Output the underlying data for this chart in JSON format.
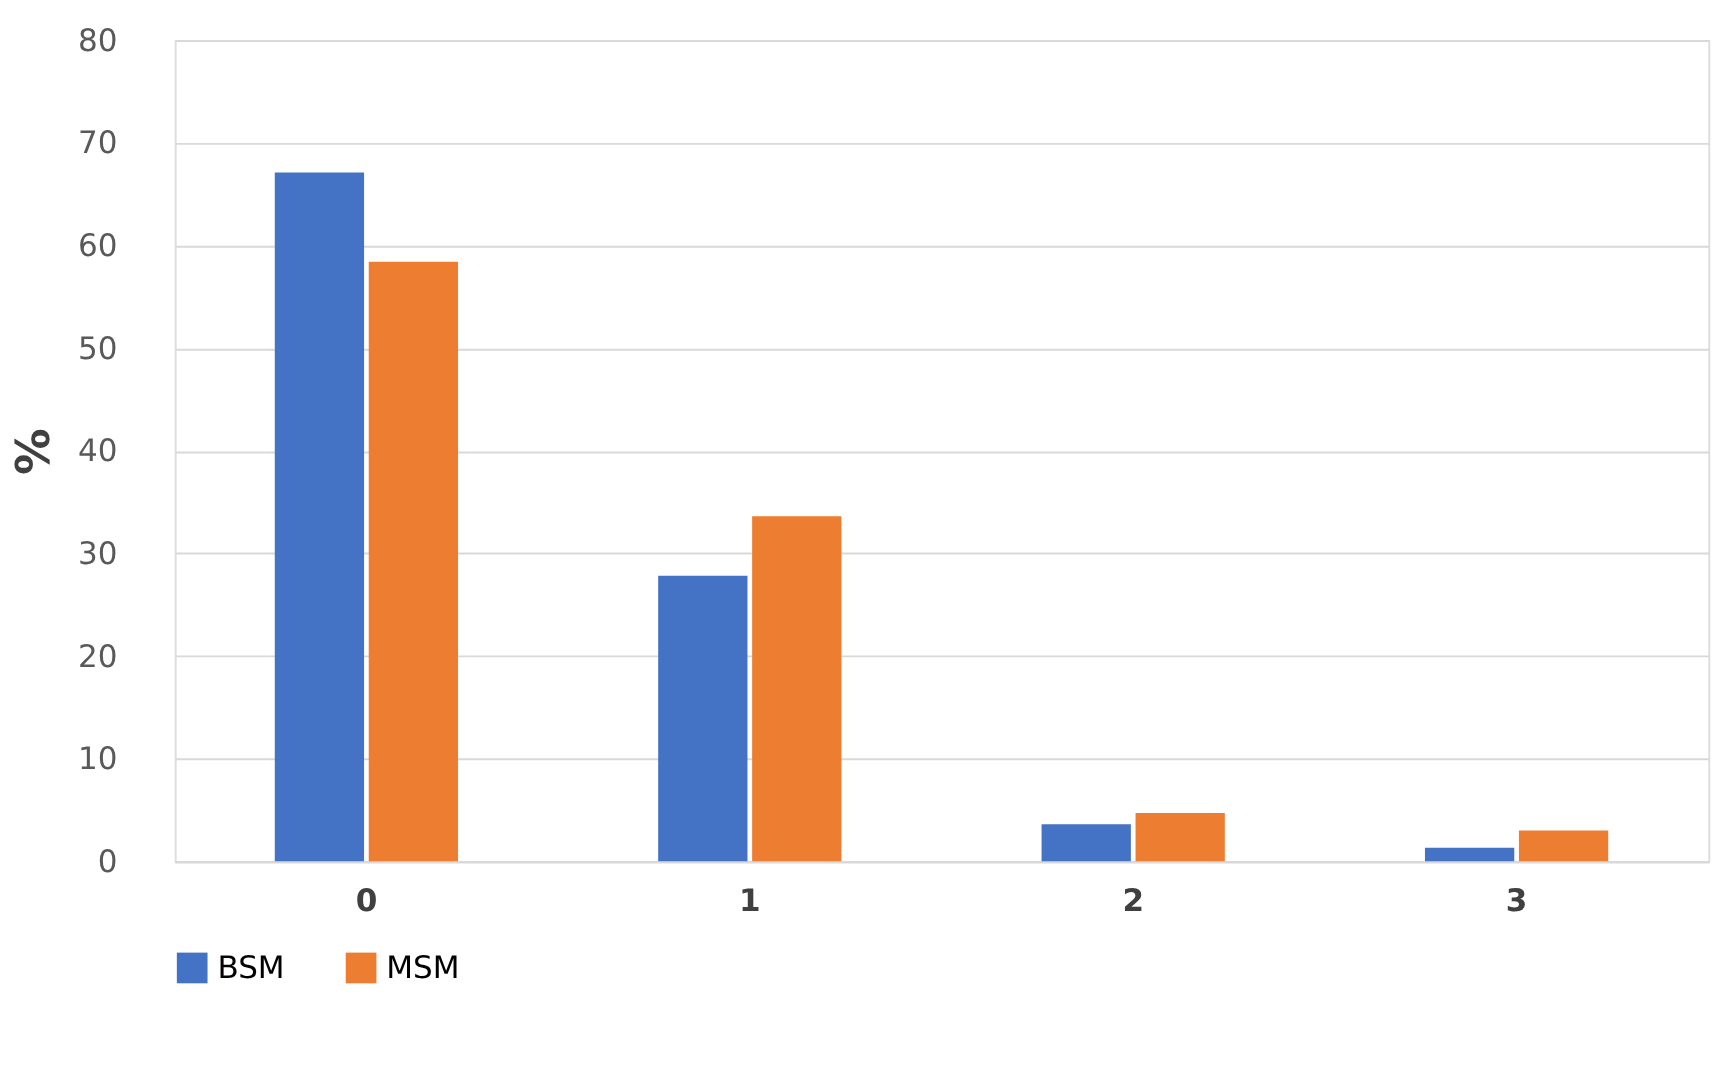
{
  "chart_data": {
    "type": "bar",
    "ylabel": "%",
    "categories": [
      "0",
      "1",
      "2",
      "3"
    ],
    "series": [
      {
        "name": "BSM",
        "color": "#4472c4",
        "values": [
          67.1,
          27.8,
          3.6,
          1.3
        ]
      },
      {
        "name": "MSM",
        "color": "#ed7d31",
        "values": [
          58.4,
          33.6,
          4.7,
          3.0
        ]
      }
    ],
    "ylim": [
      0,
      80
    ],
    "yticks": [
      0,
      10,
      20,
      30,
      40,
      50,
      60,
      70,
      80
    ],
    "grid": "y",
    "legend": "bottom"
  }
}
